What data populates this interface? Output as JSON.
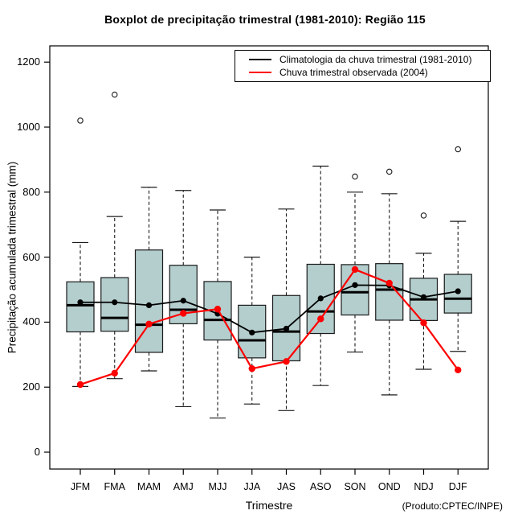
{
  "title": "Boxplot de precipitação trimestral (1981-2010): Região 115",
  "chart_data": {
    "type": "boxplot",
    "title": "Boxplot de precipitação trimestral (1981-2010): Região 115",
    "xlabel": "Trimestre",
    "ylabel": "Precipitação acumulada trimestral (mm)",
    "source_note": "(Produto:CPTEC/INPE)",
    "categories": [
      "JFM",
      "FMA",
      "MAM",
      "AMJ",
      "MJJ",
      "JJA",
      "JAS",
      "ASO",
      "SON",
      "OND",
      "NDJ",
      "DJF"
    ],
    "y_axis": {
      "min": 0,
      "max": 1200,
      "ticks": [
        0,
        200,
        400,
        600,
        800,
        1000,
        1200
      ]
    },
    "grid": "off",
    "legend_position": "top-right",
    "boxes": [
      {
        "category": "JFM",
        "whisker_low": 202,
        "q1": 370,
        "median": 452,
        "q3": 524,
        "whisker_high": 645,
        "outliers": [
          1020
        ]
      },
      {
        "category": "FMA",
        "whisker_low": 226,
        "q1": 372,
        "median": 413,
        "q3": 537,
        "whisker_high": 725,
        "outliers": [
          1100
        ]
      },
      {
        "category": "MAM",
        "whisker_low": 250,
        "q1": 307,
        "median": 392,
        "q3": 622,
        "whisker_high": 815,
        "outliers": []
      },
      {
        "category": "AMJ",
        "whisker_low": 140,
        "q1": 395,
        "median": 438,
        "q3": 575,
        "whisker_high": 805,
        "outliers": []
      },
      {
        "category": "MJJ",
        "whisker_low": 105,
        "q1": 345,
        "median": 407,
        "q3": 525,
        "whisker_high": 745,
        "outliers": []
      },
      {
        "category": "JJA",
        "whisker_low": 148,
        "q1": 290,
        "median": 344,
        "q3": 452,
        "whisker_high": 600,
        "outliers": []
      },
      {
        "category": "JAS",
        "whisker_low": 128,
        "q1": 281,
        "median": 371,
        "q3": 482,
        "whisker_high": 748,
        "outliers": []
      },
      {
        "category": "ASO",
        "whisker_low": 205,
        "q1": 365,
        "median": 433,
        "q3": 578,
        "whisker_high": 880,
        "outliers": []
      },
      {
        "category": "SON",
        "whisker_low": 308,
        "q1": 422,
        "median": 492,
        "q3": 577,
        "whisker_high": 800,
        "outliers": [
          848
        ]
      },
      {
        "category": "OND",
        "whisker_low": 176,
        "q1": 406,
        "median": 500,
        "q3": 580,
        "whisker_high": 795,
        "outliers": [
          863
        ]
      },
      {
        "category": "NDJ",
        "whisker_low": 255,
        "q1": 405,
        "median": 470,
        "q3": 535,
        "whisker_high": 612,
        "outliers": [
          728
        ]
      },
      {
        "category": "DJF",
        "whisker_low": 310,
        "q1": 428,
        "median": 472,
        "q3": 547,
        "whisker_high": 710,
        "outliers": [
          932
        ]
      }
    ],
    "series": [
      {
        "name": "Climatologia da chuva trimestral (1981-2010)",
        "color": "#000000",
        "values": [
          461,
          461,
          452,
          466,
          426,
          368,
          380,
          473,
          514,
          513,
          477,
          495
        ]
      },
      {
        "name": "Chuva trimestral observada (2004)",
        "color": "#FF0000",
        "values": [
          208,
          243,
          394,
          427,
          440,
          257,
          279,
          410,
          562,
          520,
          398,
          253
        ]
      }
    ],
    "colors": {
      "box_fill": "#B4CDCD",
      "box_border": "#1A1A1A",
      "median": "#000000",
      "whisker": "#1A1A1A",
      "axis": "#000000"
    }
  }
}
